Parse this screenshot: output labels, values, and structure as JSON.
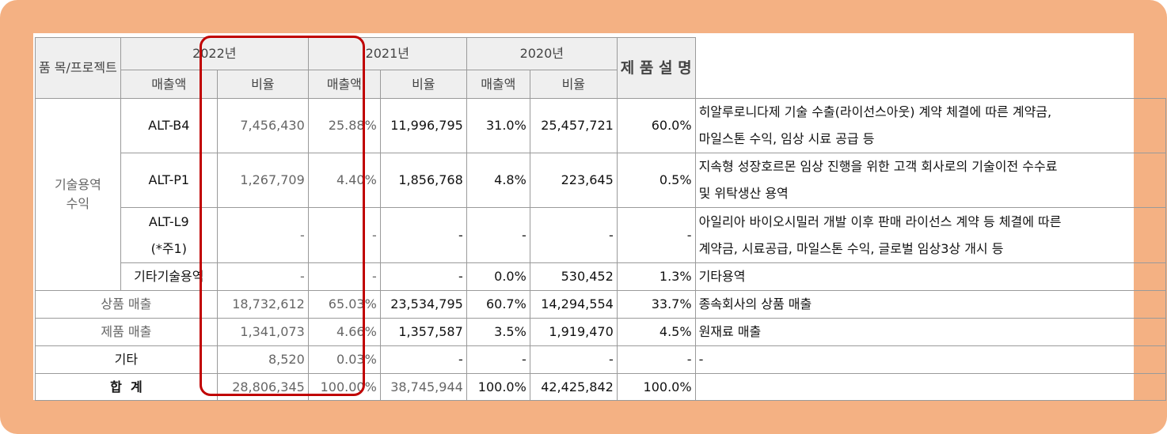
{
  "table": {
    "header": {
      "item": "품 목/프로젝트",
      "years": [
        "2022년",
        "2021년",
        "2020년"
      ],
      "sales": "매출액",
      "ratio": "비율",
      "description": "제 품 설 명"
    },
    "group": [
      "기술용역",
      "수익"
    ],
    "group_rows": [
      {
        "item": [
          "ALT-B4"
        ],
        "values": [
          "7,456,430",
          "25.88%",
          "11,996,795",
          "31.0%",
          "25,457,721",
          "60.0%"
        ],
        "description": [
          "히알루로니다제 기술 수출(라이선스아웃) 계약 체결에 따른 계약금,",
          "마일스톤 수익, 임상 시료 공급 등"
        ]
      },
      {
        "item": [
          "ALT-P1"
        ],
        "values": [
          "1,267,709",
          "4.40%",
          "1,856,768",
          "4.8%",
          "223,645",
          "0.5%"
        ],
        "description": [
          "지속형 성장호르몬 임상 진행을 위한 고객 회사로의 기술이전 수수료",
          "및 위탁생산 용역"
        ]
      },
      {
        "item": [
          "ALT-L9",
          "(*주1)"
        ],
        "values": [
          "-",
          "-",
          "-",
          "-",
          "-",
          "-"
        ],
        "description": [
          "아일리아 바이오시밀러 개발 이후 판매 라이선스 계약 등 체결에 따른",
          "계약금, 시료공급, 마일스톤 수익, 글로벌 임상3상 개시 등"
        ]
      },
      {
        "item": [
          "기타기술용역"
        ],
        "values": [
          "-",
          "-",
          "-",
          "0.0%",
          "530,452",
          "1.3%"
        ],
        "description": [
          "기타용역"
        ]
      }
    ],
    "rows": [
      {
        "item": "상품 매출",
        "values": [
          "18,732,612",
          "65.03%",
          "23,534,795",
          "60.7%",
          "14,294,554",
          "33.7%"
        ],
        "description": "종속회사의 상품 매출"
      },
      {
        "item": "제품 매출",
        "values": [
          "1,341,073",
          "4.66%",
          "1,357,587",
          "3.5%",
          "1,919,470",
          "4.5%"
        ],
        "description": "원재료 매출"
      },
      {
        "item": "기타",
        "values": [
          "8,520",
          "0.03%",
          "-",
          "-",
          "-",
          "-"
        ],
        "description": "-"
      }
    ],
    "total": {
      "item": "합  계",
      "values": [
        "28,806,345",
        "100.00%",
        "38,745,944",
        "100.0%",
        "42,425,842",
        "100.0%"
      ]
    }
  }
}
